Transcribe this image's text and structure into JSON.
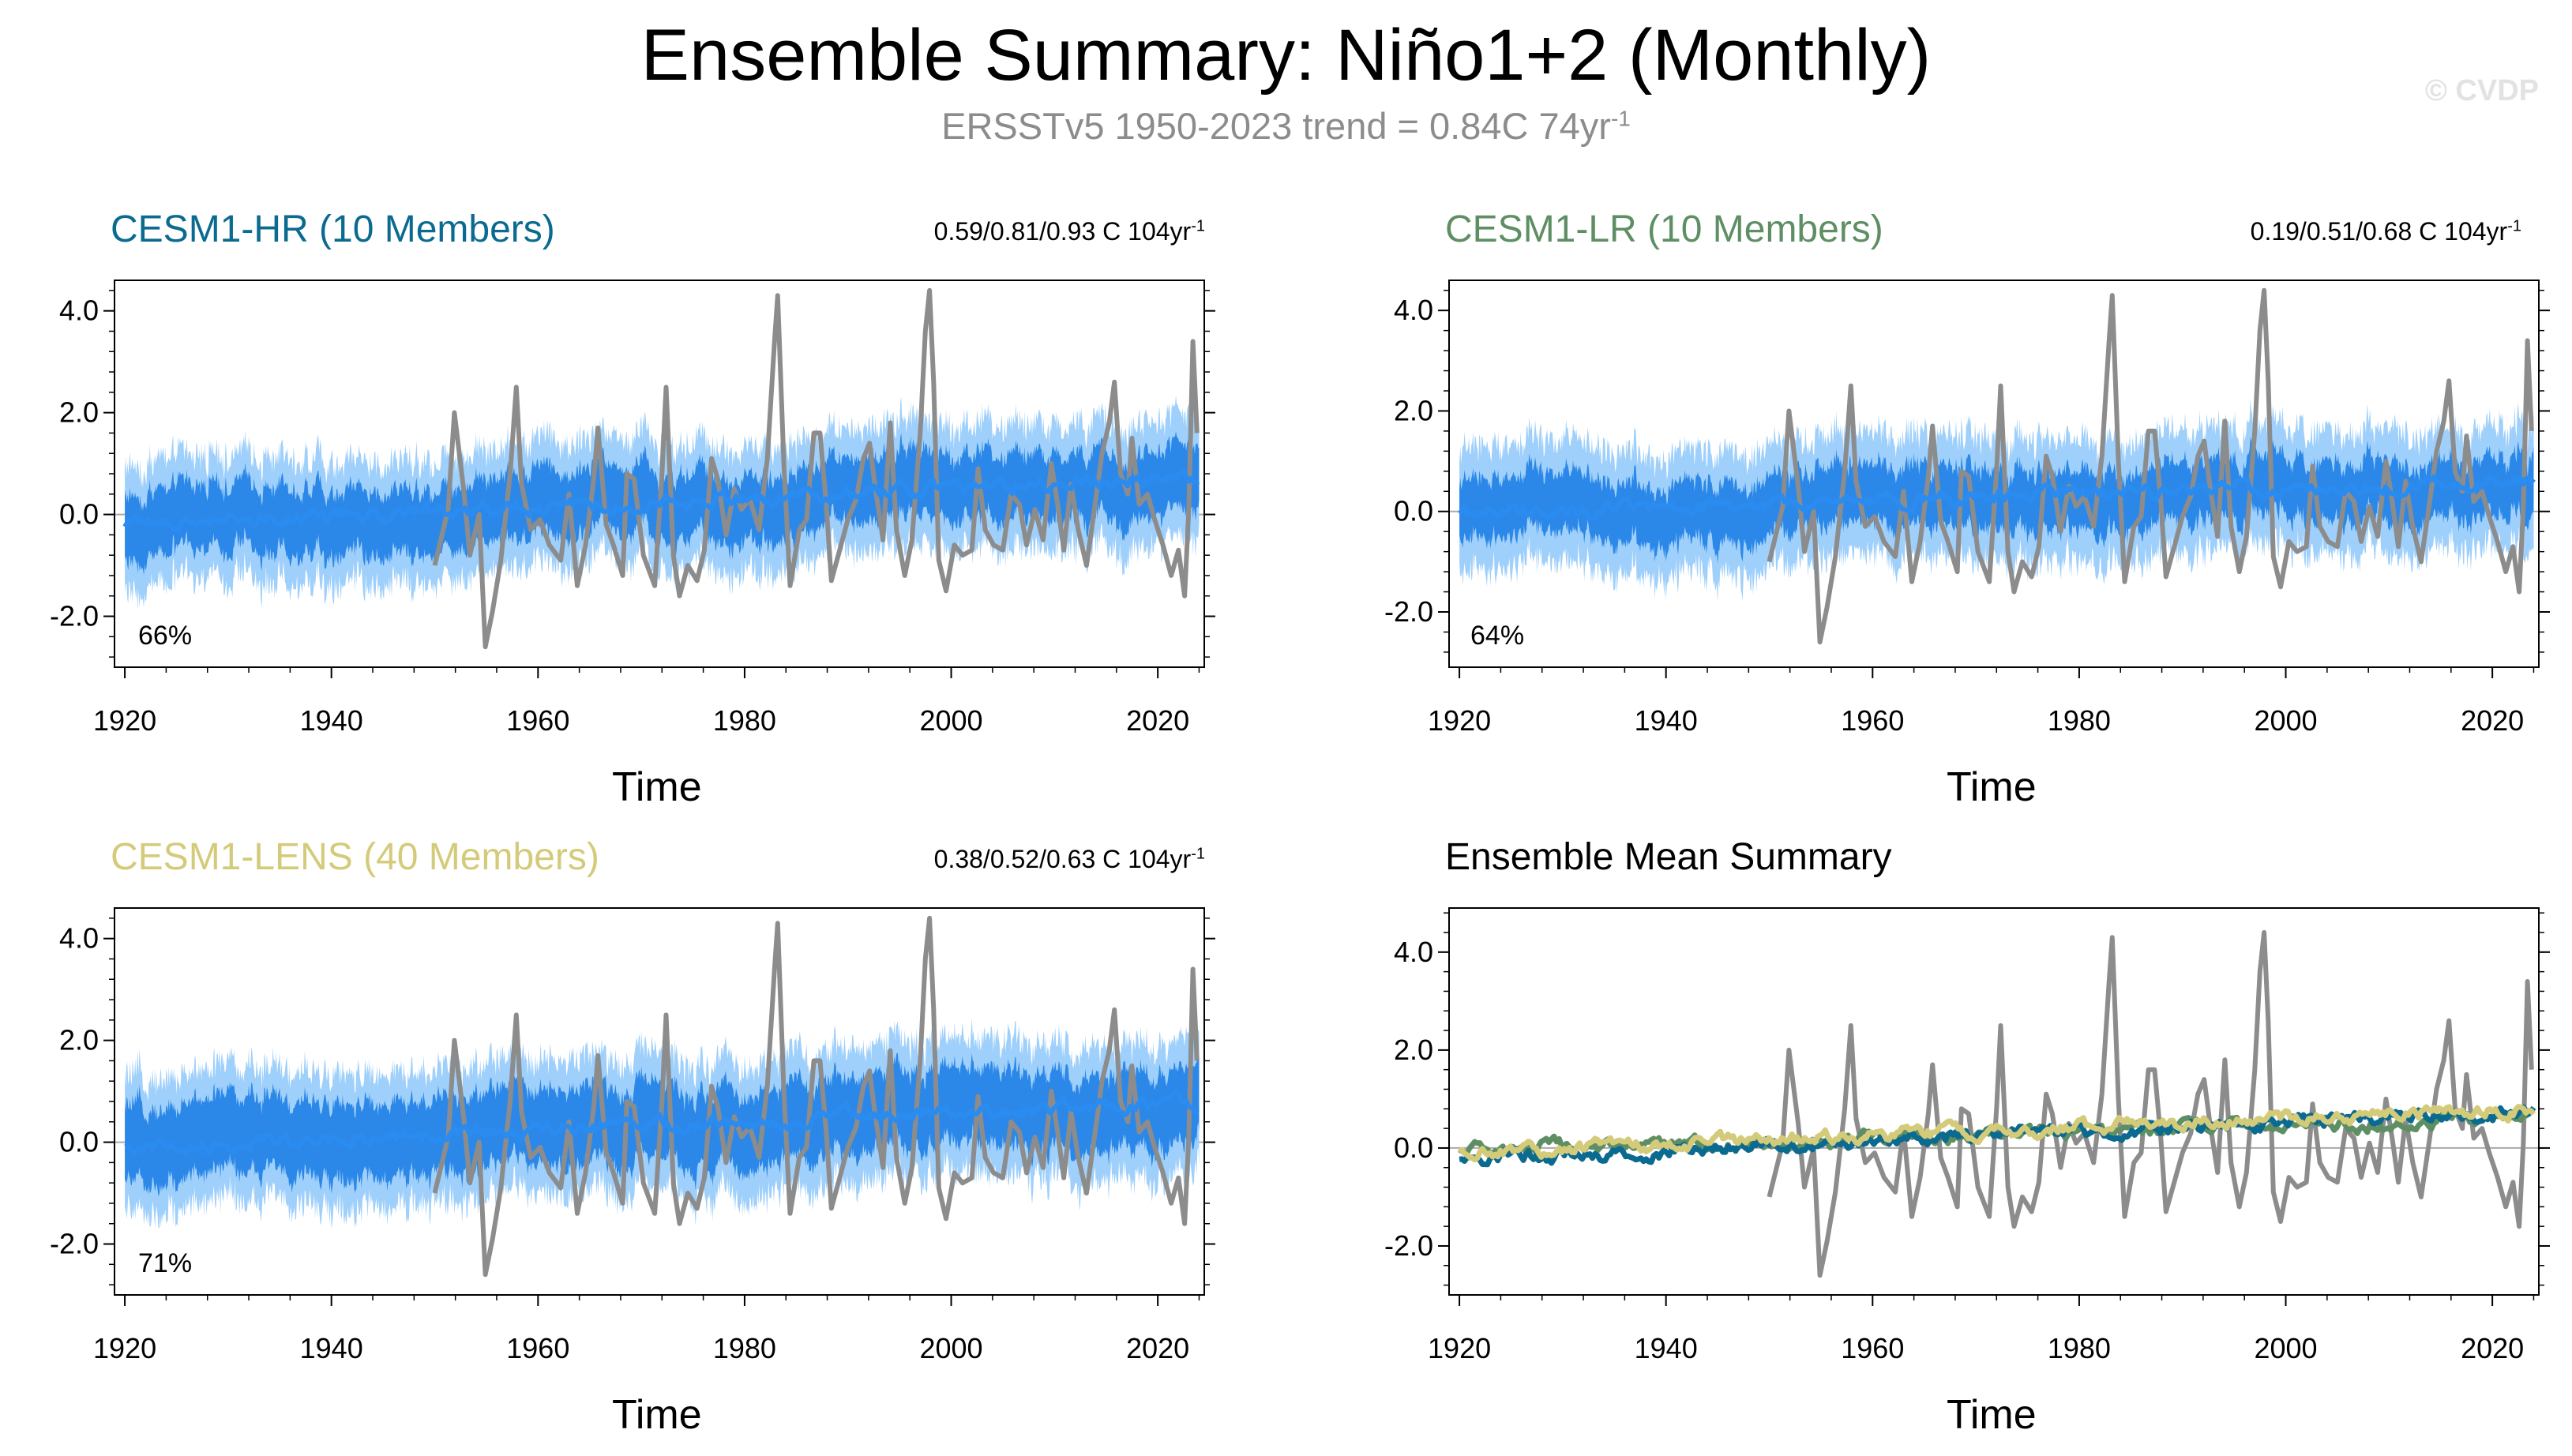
{
  "header": {
    "title": "Ensemble Summary: Niño1+2 (Monthly)",
    "subtitle_main": "ERSSTv5 1950-2023 trend = 0.84C 74yr",
    "subtitle_sup": "-1",
    "watermark": "© CVDP"
  },
  "colors": {
    "obs": "#8c8c8c",
    "hr": "#0b6a8f",
    "lr": "#5e8e63",
    "lens": "#d4cb7a",
    "ens_mean": "#2a8cf0",
    "ens_dark": "#1f7fe6",
    "ens_light": "#9fd0fb"
  },
  "chart_data": [
    {
      "type": "line",
      "id": "hr",
      "title": "CESM1-HR (10 Members)",
      "title_color": "#0b6a8f",
      "trend_text": "0.59/0.81/0.93 C 104yr",
      "trend_sup": "-1",
      "percent_label": "66%",
      "xlabel": "Time",
      "xlim": [
        1919,
        2024.5
      ],
      "ylim": [
        -3.0,
        4.6
      ],
      "xticks": [
        1920,
        1940,
        1960,
        1980,
        2000,
        2020
      ],
      "xtick_labels": [
        "1920",
        "1940",
        "1960",
        "1980",
        "2000",
        "2020"
      ],
      "yticks": [
        -2.0,
        0.0,
        2.0,
        4.0
      ],
      "ytick_labels": [
        "-2.0",
        "0.0",
        "2.0",
        "4.0"
      ],
      "series": [
        {
          "name": "ensemble spread",
          "kind": "spread",
          "x_start": 1920,
          "x_end": 2024,
          "start_mean": -0.25,
          "end_mean": 0.75,
          "inner_amp": 0.55,
          "outer_amp": 1.05
        },
        {
          "name": "ensemble mean",
          "kind": "mean",
          "x_start": 1920,
          "x_end": 2024,
          "start_value": -0.25,
          "end_value": 0.75
        },
        {
          "name": "ERSSTv5 observed",
          "x": [
            1950,
            1951.3,
            1951.9,
            1952.8,
            1953.4,
            1954.3,
            1954.9,
            1955.6,
            1956.4,
            1957.3,
            1957.9,
            1958.4,
            1959.3,
            1960.2,
            1961.1,
            1962.2,
            1963.0,
            1963.8,
            1964.6,
            1965.4,
            1965.8,
            1966.6,
            1967.3,
            1968.2,
            1968.6,
            1969.3,
            1970.2,
            1971.3,
            1972.0,
            1972.4,
            1973.1,
            1973.7,
            1974.5,
            1975.4,
            1976.1,
            1976.8,
            1977.4,
            1978.2,
            1979.0,
            1979.7,
            1980.5,
            1981.4,
            1982.2,
            1982.9,
            1983.2,
            1983.8,
            1984.4,
            1985.3,
            1986.0,
            1986.7,
            1987.3,
            1987.9,
            1988.4,
            1989.2,
            1990.0,
            1990.8,
            1991.5,
            1992.1,
            1992.6,
            1993.4,
            1994.1,
            1994.7,
            1995.5,
            1996.2,
            1997.0,
            1997.5,
            1997.9,
            1998.3,
            1998.8,
            1999.5,
            2000.3,
            2001.1,
            2002.0,
            2002.6,
            2003.3,
            2004.1,
            2005.0,
            2005.8,
            2006.6,
            2007.3,
            2008.1,
            2008.9,
            2009.7,
            2010.3,
            2010.9,
            2011.6,
            2012.3,
            2013.1,
            2013.8,
            2014.6,
            2015.3,
            2015.8,
            2016.4,
            2017.1,
            2017.5,
            2018.2,
            2019.0,
            2019.7,
            2020.5,
            2021.3,
            2022.0,
            2022.6,
            2023.0,
            2023.4,
            2023.8
          ],
          "y": [
            -1.0,
            0.1,
            2.0,
            0.5,
            -0.8,
            0.0,
            -2.6,
            -1.9,
            -0.9,
            0.8,
            2.5,
            0.6,
            -0.3,
            -0.1,
            -0.6,
            -0.9,
            0.4,
            -1.4,
            -0.6,
            0.7,
            1.7,
            -0.2,
            -0.6,
            -1.2,
            0.8,
            0.7,
            -0.8,
            -1.4,
            0.8,
            2.5,
            -0.8,
            -1.6,
            -1.0,
            -1.3,
            -0.7,
            1.1,
            0.7,
            -0.4,
            0.5,
            0.1,
            0.3,
            -0.3,
            1.1,
            3.4,
            4.3,
            1.0,
            -1.4,
            -0.3,
            -0.1,
            1.6,
            1.6,
            0.2,
            -1.3,
            -0.7,
            -0.1,
            0.3,
            1.1,
            1.4,
            0.6,
            -0.5,
            1.8,
            -0.3,
            -1.2,
            -0.5,
            1.6,
            3.6,
            4.4,
            2.6,
            -0.9,
            -1.5,
            -0.6,
            -0.8,
            -0.7,
            0.9,
            -0.3,
            -0.6,
            -0.7,
            0.4,
            0.2,
            -0.6,
            0.1,
            -0.5,
            1.0,
            0.2,
            -0.7,
            0.6,
            -0.3,
            -1.0,
            0.0,
            1.2,
            1.8,
            2.6,
            0.8,
            0.4,
            1.5,
            0.2,
            0.4,
            -0.1,
            -0.6,
            -1.2,
            -0.7,
            -1.6,
            0.1,
            3.4,
            1.6
          ]
        }
      ]
    },
    {
      "type": "line",
      "id": "lr",
      "title": "CESM1-LR (10 Members)",
      "title_color": "#5e8e63",
      "trend_text": "0.19/0.51/0.68 C 104yr",
      "trend_sup": "-1",
      "percent_label": "64%",
      "xlabel": "Time",
      "xlim": [
        1919,
        2024.5
      ],
      "ylim": [
        -3.1,
        4.6
      ],
      "xticks": [
        1920,
        1940,
        1960,
        1980,
        2000,
        2020
      ],
      "xtick_labels": [
        "1920",
        "1940",
        "1960",
        "1980",
        "2000",
        "2020"
      ],
      "yticks": [
        -2.0,
        0.0,
        2.0,
        4.0
      ],
      "ytick_labels": [
        "-2.0",
        "0.0",
        "2.0",
        "4.0"
      ],
      "series": [
        {
          "name": "ensemble spread",
          "kind": "spread",
          "x_start": 1920,
          "x_end": 2024,
          "start_mean": -0.05,
          "end_mean": 0.6,
          "inner_amp": 0.5,
          "outer_amp": 1.05
        },
        {
          "name": "ensemble mean",
          "kind": "mean",
          "x_start": 1920,
          "x_end": 2024,
          "start_value": -0.05,
          "end_value": 0.6
        },
        {
          "name": "ERSSTv5 observed",
          "same_as": "hr"
        }
      ]
    },
    {
      "type": "line",
      "id": "lens",
      "title": "CESM1-LENS (40 Members)",
      "title_color": "#d4cb7a",
      "trend_text": "0.38/0.52/0.63 C 104yr",
      "trend_sup": "-1",
      "percent_label": "71%",
      "xlabel": "Time",
      "xlim": [
        1919,
        2024.5
      ],
      "ylim": [
        -3.0,
        4.6
      ],
      "xticks": [
        1920,
        1940,
        1960,
        1980,
        2000,
        2020
      ],
      "xtick_labels": [
        "1920",
        "1940",
        "1960",
        "1980",
        "2000",
        "2020"
      ],
      "yticks": [
        -2.0,
        0.0,
        2.0,
        4.0
      ],
      "ytick_labels": [
        "-2.0",
        "0.0",
        "2.0",
        "4.0"
      ],
      "series": [
        {
          "name": "ensemble spread",
          "kind": "spread",
          "x_start": 1920,
          "x_end": 2024,
          "start_mean": -0.1,
          "end_mean": 0.8,
          "inner_amp": 0.65,
          "outer_amp": 1.15
        },
        {
          "name": "ensemble mean",
          "kind": "mean",
          "x_start": 1920,
          "x_end": 2024,
          "start_value": -0.1,
          "end_value": 0.8
        },
        {
          "name": "ERSSTv5 observed",
          "same_as": "hr"
        }
      ]
    },
    {
      "type": "line",
      "id": "summary",
      "title": "Ensemble Mean Summary",
      "title_color": "#000000",
      "trend_text": "",
      "trend_sup": "",
      "percent_label": "",
      "xlabel": "Time",
      "xlim": [
        1919,
        2024.5
      ],
      "ylim": [
        -3.0,
        4.9
      ],
      "xticks": [
        1920,
        1940,
        1960,
        1980,
        2000,
        2020
      ],
      "xtick_labels": [
        "1920",
        "1940",
        "1960",
        "1980",
        "2000",
        "2020"
      ],
      "yticks": [
        -2.0,
        0.0,
        2.0,
        4.0
      ],
      "ytick_labels": [
        "-2.0",
        "0.0",
        "2.0",
        "4.0"
      ],
      "series": [
        {
          "name": "ERSSTv5 observed",
          "same_as": "hr"
        },
        {
          "name": "CESM1-LR ensemble mean",
          "kind": "mean",
          "color": "#5e8e63",
          "x_start": 1920,
          "x_end": 2024,
          "start_value": -0.05,
          "end_value": 0.6
        },
        {
          "name": "CESM1-HR ensemble mean",
          "kind": "mean",
          "color": "#0b6a8f",
          "x_start": 1920,
          "x_end": 2024,
          "start_value": -0.25,
          "end_value": 0.75
        },
        {
          "name": "CESM1-LENS ensemble mean",
          "kind": "mean",
          "color": "#d4cb7a",
          "x_start": 1920,
          "x_end": 2024,
          "start_value": -0.1,
          "end_value": 0.8
        }
      ]
    }
  ]
}
